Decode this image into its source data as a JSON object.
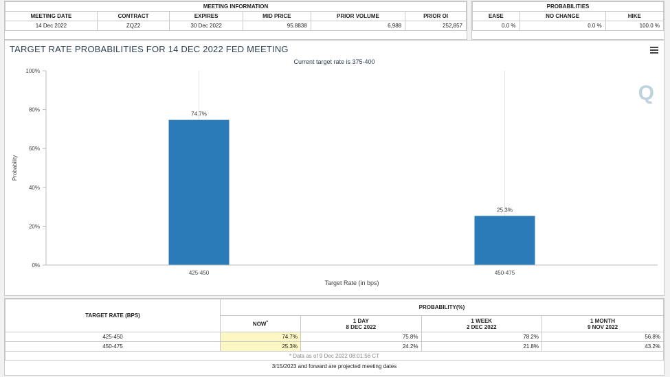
{
  "meeting_info": {
    "header": "MEETING INFORMATION",
    "columns": [
      "MEETING DATE",
      "CONTRACT",
      "EXPIRES",
      "MID PRICE",
      "PRIOR VOLUME",
      "PRIOR OI"
    ],
    "row": [
      "14 Dec 2022",
      "ZQZ2",
      "30 Dec 2022",
      "95.8838",
      "6,988",
      "252,857"
    ]
  },
  "probabilities": {
    "header": "PROBABILITIES",
    "columns": [
      "EASE",
      "NO CHANGE",
      "HIKE"
    ],
    "row": [
      "0.0 %",
      "0.0 %",
      "100.0 %"
    ]
  },
  "chart": {
    "title": "TARGET RATE PROBABILITIES FOR 14 DEC 2022 FED MEETING",
    "subtitle": "Current target rate is 375-400",
    "logo": "Q"
  },
  "chart_data": {
    "type": "bar",
    "title": "TARGET RATE PROBABILITIES FOR 14 DEC 2022 FED MEETING",
    "subtitle": "Current target rate is 375-400",
    "categories": [
      "425-450",
      "450-475"
    ],
    "values": [
      74.7,
      25.3
    ],
    "data_labels": [
      "74.7%",
      "25.3%"
    ],
    "xlabel": "Target Rate (in bps)",
    "ylabel": "Probability",
    "ylim": [
      0,
      100
    ],
    "yticks": [
      "0%",
      "20%",
      "40%",
      "60%",
      "80%",
      "100%"
    ],
    "bar_color": "#2b7bb9",
    "grid": true
  },
  "prob_table": {
    "target_header": "TARGET RATE (BPS)",
    "prob_header": "PROBABILITY(%)",
    "now_label": "NOW",
    "now_marker": "*",
    "col_1day": "1 DAY",
    "col_1day_date": "8 DEC 2022",
    "col_1week": "1 WEEK",
    "col_1week_date": "2 DEC 2022",
    "col_1month": "1 MONTH",
    "col_1month_date": "9 NOV 2022",
    "rows": [
      [
        "425-450",
        "74.7%",
        "75.8%",
        "78.2%",
        "56.8%"
      ],
      [
        "450-475",
        "25.3%",
        "24.2%",
        "21.8%",
        "43.2%"
      ]
    ],
    "note": "* Data as of 9 Dec 2022 08:01:56 CT",
    "footer": "3/15/2023 and forward are projected meeting dates"
  }
}
